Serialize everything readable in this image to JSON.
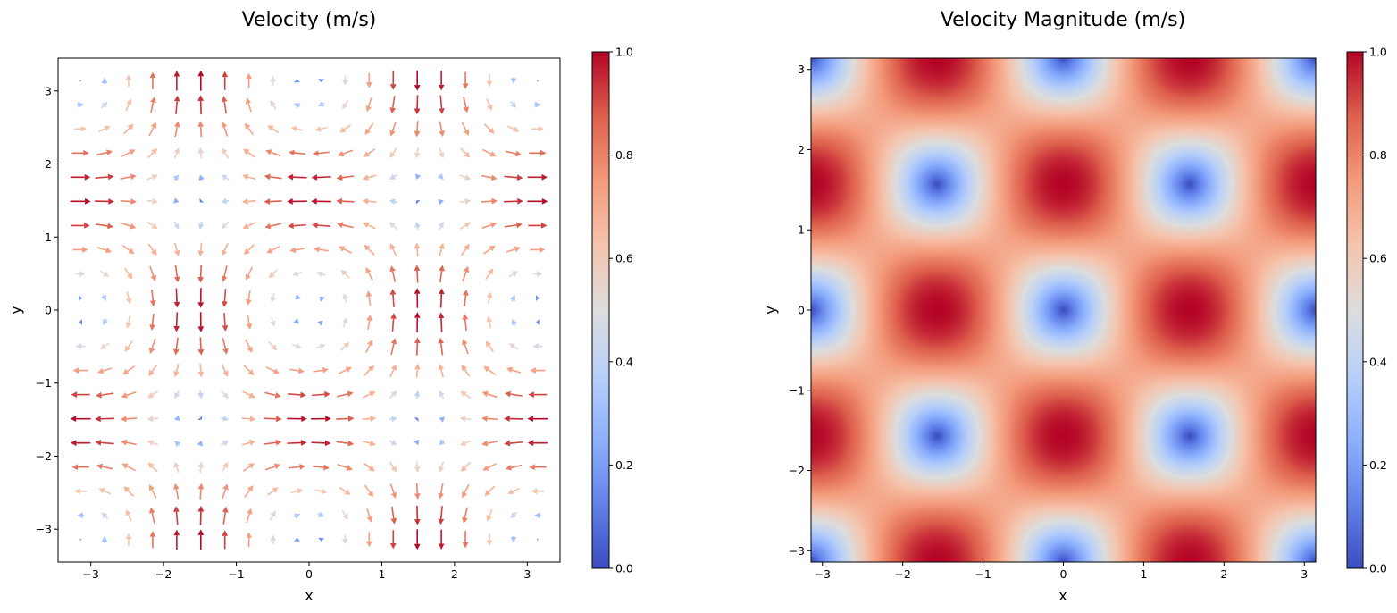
{
  "chart_data": [
    {
      "type": "quiver",
      "title": "Velocity (m/s)",
      "xlabel": "x",
      "ylabel": "y",
      "xlim": [
        -3.45,
        3.45
      ],
      "ylim": [
        -3.45,
        3.45
      ],
      "xticks": [
        -3,
        -2,
        -1,
        0,
        1,
        2,
        3
      ],
      "yticks": [
        -3,
        -2,
        -1,
        0,
        1,
        2,
        3
      ],
      "xticklabels": [
        "−3",
        "−2",
        "−1",
        "0",
        "1",
        "2",
        "3"
      ],
      "yticklabels": [
        "−3",
        "−2",
        "−1",
        "0",
        "1",
        "2",
        "3"
      ],
      "grid": false,
      "field": {
        "u": "-cos(x)*sin(y)",
        "v": "sin(x)*cos(y)",
        "magnitude": "sqrt(u^2+v^2)",
        "x_range": [
          -3.14159,
          3.14159
        ],
        "y_range": [
          -3.14159,
          3.14159
        ],
        "points_per_axis": 20
      },
      "colormap": "coolwarm",
      "colorbar": {
        "range": [
          0.0,
          1.0
        ],
        "ticks": [
          0.0,
          0.2,
          0.4,
          0.6,
          0.8,
          1.0
        ],
        "ticklabels": [
          "0.0",
          "0.2",
          "0.4",
          "0.6",
          "0.8",
          "1.0"
        ]
      }
    },
    {
      "type": "heatmap",
      "title": "Velocity Magnitude (m/s)",
      "xlabel": "x",
      "ylabel": "y",
      "xlim": [
        -3.14159,
        3.14159
      ],
      "ylim": [
        -3.14159,
        3.14159
      ],
      "xticks": [
        -3,
        -2,
        -1,
        0,
        1,
        2,
        3
      ],
      "yticks": [
        -3,
        -2,
        -1,
        0,
        1,
        2,
        3
      ],
      "xticklabels": [
        "−3",
        "−2",
        "−1",
        "0",
        "1",
        "2",
        "3"
      ],
      "yticklabels": [
        "−3",
        "−2",
        "−1",
        "0",
        "1",
        "2",
        "3"
      ],
      "grid": false,
      "field": {
        "value": "sqrt(cos(x)^2*sin(y)^2 + sin(x)^2*cos(y)^2)"
      },
      "colormap": "coolwarm",
      "colorbar": {
        "range": [
          0.0,
          1.0
        ],
        "ticks": [
          0.0,
          0.2,
          0.4,
          0.6,
          0.8,
          1.0
        ],
        "ticklabels": [
          "0.0",
          "0.2",
          "0.4",
          "0.6",
          "0.8",
          "1.0"
        ]
      }
    }
  ]
}
